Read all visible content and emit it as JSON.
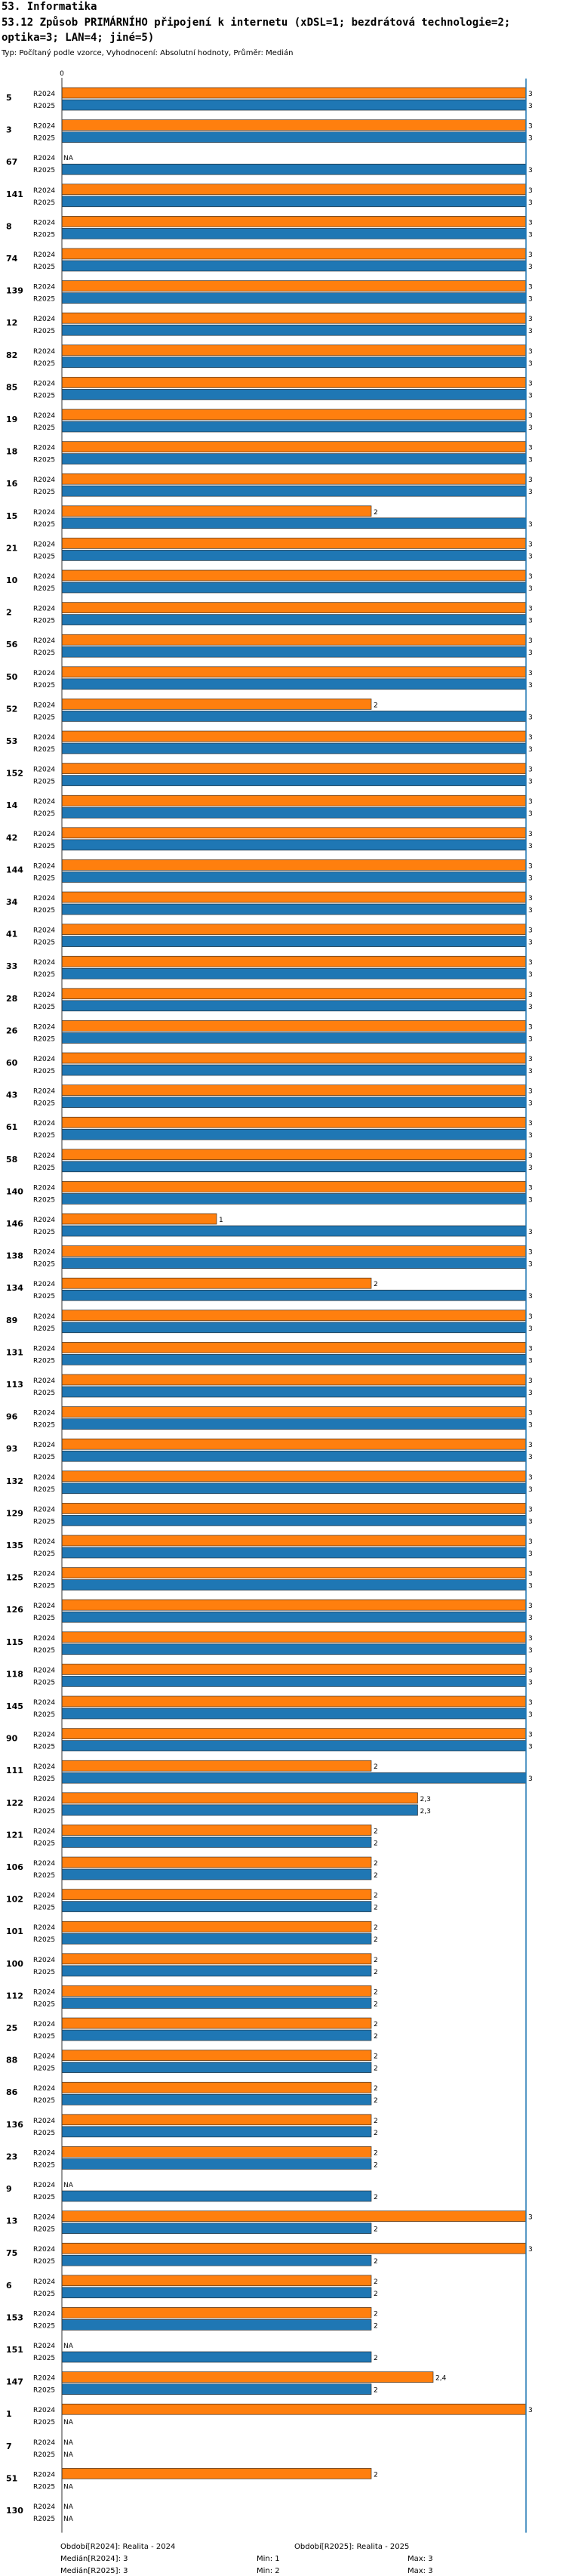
{
  "header": {
    "section": "53. Informatika",
    "title": "53.12 Způsob PRIMÁRNÍHO připojení k internetu (xDSL=1; bezdrátová technologie=2; optika=3; LAN=4; jiné=5)",
    "subtitle": "Typ: Počítaný podle vzorce, Vyhodnocení: Absolutní hodnoty, Průměr: Medián"
  },
  "chart_data": {
    "type": "bar",
    "orientation": "horizontal",
    "xlim": [
      0,
      3
    ],
    "x_ticks": [
      "0"
    ],
    "na_label": "NA",
    "series": [
      {
        "name": "R2024",
        "color": "#ff7f0e"
      },
      {
        "name": "R2025",
        "color": "#1f77b4"
      }
    ],
    "groups": [
      {
        "id": "5",
        "values": [
          3,
          3
        ],
        "labels": [
          "3",
          "3"
        ]
      },
      {
        "id": "3",
        "values": [
          3,
          3
        ],
        "labels": [
          "3",
          "3"
        ]
      },
      {
        "id": "67",
        "values": [
          null,
          3
        ],
        "labels": [
          "NA",
          "3"
        ]
      },
      {
        "id": "141",
        "values": [
          3,
          3
        ],
        "labels": [
          "3",
          "3"
        ]
      },
      {
        "id": "8",
        "values": [
          3,
          3
        ],
        "labels": [
          "3",
          "3"
        ]
      },
      {
        "id": "74",
        "values": [
          3,
          3
        ],
        "labels": [
          "3",
          "3"
        ]
      },
      {
        "id": "139",
        "values": [
          3,
          3
        ],
        "labels": [
          "3",
          "3"
        ]
      },
      {
        "id": "12",
        "values": [
          3,
          3
        ],
        "labels": [
          "3",
          "3"
        ]
      },
      {
        "id": "82",
        "values": [
          3,
          3
        ],
        "labels": [
          "3",
          "3"
        ]
      },
      {
        "id": "85",
        "values": [
          3,
          3
        ],
        "labels": [
          "3",
          "3"
        ]
      },
      {
        "id": "19",
        "values": [
          3,
          3
        ],
        "labels": [
          "3",
          "3"
        ]
      },
      {
        "id": "18",
        "values": [
          3,
          3
        ],
        "labels": [
          "3",
          "3"
        ]
      },
      {
        "id": "16",
        "values": [
          3,
          3
        ],
        "labels": [
          "3",
          "3"
        ]
      },
      {
        "id": "15",
        "values": [
          2,
          3
        ],
        "labels": [
          "2",
          "3"
        ]
      },
      {
        "id": "21",
        "values": [
          3,
          3
        ],
        "labels": [
          "3",
          "3"
        ]
      },
      {
        "id": "10",
        "values": [
          3,
          3
        ],
        "labels": [
          "3",
          "3"
        ]
      },
      {
        "id": "2",
        "values": [
          3,
          3
        ],
        "labels": [
          "3",
          "3"
        ]
      },
      {
        "id": "56",
        "values": [
          3,
          3
        ],
        "labels": [
          "3",
          "3"
        ]
      },
      {
        "id": "50",
        "values": [
          3,
          3
        ],
        "labels": [
          "3",
          "3"
        ]
      },
      {
        "id": "52",
        "values": [
          2,
          3
        ],
        "labels": [
          "2",
          "3"
        ]
      },
      {
        "id": "53",
        "values": [
          3,
          3
        ],
        "labels": [
          "3",
          "3"
        ]
      },
      {
        "id": "152",
        "values": [
          3,
          3
        ],
        "labels": [
          "3",
          "3"
        ]
      },
      {
        "id": "14",
        "values": [
          3,
          3
        ],
        "labels": [
          "3",
          "3"
        ]
      },
      {
        "id": "42",
        "values": [
          3,
          3
        ],
        "labels": [
          "3",
          "3"
        ]
      },
      {
        "id": "144",
        "values": [
          3,
          3
        ],
        "labels": [
          "3",
          "3"
        ]
      },
      {
        "id": "34",
        "values": [
          3,
          3
        ],
        "labels": [
          "3",
          "3"
        ]
      },
      {
        "id": "41",
        "values": [
          3,
          3
        ],
        "labels": [
          "3",
          "3"
        ]
      },
      {
        "id": "33",
        "values": [
          3,
          3
        ],
        "labels": [
          "3",
          "3"
        ]
      },
      {
        "id": "28",
        "values": [
          3,
          3
        ],
        "labels": [
          "3",
          "3"
        ]
      },
      {
        "id": "26",
        "values": [
          3,
          3
        ],
        "labels": [
          "3",
          "3"
        ]
      },
      {
        "id": "60",
        "values": [
          3,
          3
        ],
        "labels": [
          "3",
          "3"
        ]
      },
      {
        "id": "43",
        "values": [
          3,
          3
        ],
        "labels": [
          "3",
          "3"
        ]
      },
      {
        "id": "61",
        "values": [
          3,
          3
        ],
        "labels": [
          "3",
          "3"
        ]
      },
      {
        "id": "58",
        "values": [
          3,
          3
        ],
        "labels": [
          "3",
          "3"
        ]
      },
      {
        "id": "140",
        "values": [
          3,
          3
        ],
        "labels": [
          "3",
          "3"
        ]
      },
      {
        "id": "146",
        "values": [
          1,
          3
        ],
        "labels": [
          "1",
          "3"
        ]
      },
      {
        "id": "138",
        "values": [
          3,
          3
        ],
        "labels": [
          "3",
          "3"
        ]
      },
      {
        "id": "134",
        "values": [
          2,
          3
        ],
        "labels": [
          "2",
          "3"
        ]
      },
      {
        "id": "89",
        "values": [
          3,
          3
        ],
        "labels": [
          "3",
          "3"
        ]
      },
      {
        "id": "131",
        "values": [
          3,
          3
        ],
        "labels": [
          "3",
          "3"
        ]
      },
      {
        "id": "113",
        "values": [
          3,
          3
        ],
        "labels": [
          "3",
          "3"
        ]
      },
      {
        "id": "96",
        "values": [
          3,
          3
        ],
        "labels": [
          "3",
          "3"
        ]
      },
      {
        "id": "93",
        "values": [
          3,
          3
        ],
        "labels": [
          "3",
          "3"
        ]
      },
      {
        "id": "132",
        "values": [
          3,
          3
        ],
        "labels": [
          "3",
          "3"
        ]
      },
      {
        "id": "129",
        "values": [
          3,
          3
        ],
        "labels": [
          "3",
          "3"
        ]
      },
      {
        "id": "135",
        "values": [
          3,
          3
        ],
        "labels": [
          "3",
          "3"
        ]
      },
      {
        "id": "125",
        "values": [
          3,
          3
        ],
        "labels": [
          "3",
          "3"
        ]
      },
      {
        "id": "126",
        "values": [
          3,
          3
        ],
        "labels": [
          "3",
          "3"
        ]
      },
      {
        "id": "115",
        "values": [
          3,
          3
        ],
        "labels": [
          "3",
          "3"
        ]
      },
      {
        "id": "118",
        "values": [
          3,
          3
        ],
        "labels": [
          "3",
          "3"
        ]
      },
      {
        "id": "145",
        "values": [
          3,
          3
        ],
        "labels": [
          "3",
          "3"
        ]
      },
      {
        "id": "90",
        "values": [
          3,
          3
        ],
        "labels": [
          "3",
          "3"
        ]
      },
      {
        "id": "111",
        "values": [
          2,
          3
        ],
        "labels": [
          "2",
          "3"
        ]
      },
      {
        "id": "122",
        "values": [
          2.3,
          2.3
        ],
        "labels": [
          "2,3",
          "2,3"
        ]
      },
      {
        "id": "121",
        "values": [
          2,
          2
        ],
        "labels": [
          "2",
          "2"
        ]
      },
      {
        "id": "106",
        "values": [
          2,
          2
        ],
        "labels": [
          "2",
          "2"
        ]
      },
      {
        "id": "102",
        "values": [
          2,
          2
        ],
        "labels": [
          "2",
          "2"
        ]
      },
      {
        "id": "101",
        "values": [
          2,
          2
        ],
        "labels": [
          "2",
          "2"
        ]
      },
      {
        "id": "100",
        "values": [
          2,
          2
        ],
        "labels": [
          "2",
          "2"
        ]
      },
      {
        "id": "112",
        "values": [
          2,
          2
        ],
        "labels": [
          "2",
          "2"
        ]
      },
      {
        "id": "25",
        "values": [
          2,
          2
        ],
        "labels": [
          "2",
          "2"
        ]
      },
      {
        "id": "88",
        "values": [
          2,
          2
        ],
        "labels": [
          "2",
          "2"
        ]
      },
      {
        "id": "86",
        "values": [
          2,
          2
        ],
        "labels": [
          "2",
          "2"
        ]
      },
      {
        "id": "136",
        "values": [
          2,
          2
        ],
        "labels": [
          "2",
          "2"
        ]
      },
      {
        "id": "23",
        "values": [
          2,
          2
        ],
        "labels": [
          "2",
          "2"
        ]
      },
      {
        "id": "9",
        "values": [
          null,
          2
        ],
        "labels": [
          "NA",
          "2"
        ]
      },
      {
        "id": "13",
        "values": [
          3,
          2
        ],
        "labels": [
          "3",
          "2"
        ]
      },
      {
        "id": "75",
        "values": [
          3,
          2
        ],
        "labels": [
          "3",
          "2"
        ]
      },
      {
        "id": "6",
        "values": [
          2,
          2
        ],
        "labels": [
          "2",
          "2"
        ]
      },
      {
        "id": "153",
        "values": [
          2,
          2
        ],
        "labels": [
          "2",
          "2"
        ]
      },
      {
        "id": "151",
        "values": [
          null,
          2
        ],
        "labels": [
          "NA",
          "2"
        ]
      },
      {
        "id": "147",
        "values": [
          2.4,
          2
        ],
        "labels": [
          "2,4",
          "2"
        ]
      },
      {
        "id": "1",
        "values": [
          3,
          null
        ],
        "labels": [
          "3",
          "NA"
        ]
      },
      {
        "id": "7",
        "values": [
          null,
          null
        ],
        "labels": [
          "NA",
          "NA"
        ]
      },
      {
        "id": "51",
        "values": [
          2,
          null
        ],
        "labels": [
          "2",
          "NA"
        ]
      },
      {
        "id": "130",
        "values": [
          null,
          null
        ],
        "labels": [
          "NA",
          "NA"
        ]
      }
    ]
  },
  "legend": {
    "period1": "Období[R2024]: Realita - 2024",
    "period2": "Období[R2025]: Realita - 2025",
    "median1": "Medián[R2024]: 3",
    "median2": "Medián[R2025]: 3",
    "min1": "Min: 1",
    "min2": "Min: 2",
    "max1": "Max: 3",
    "max2": "Max: 3"
  }
}
